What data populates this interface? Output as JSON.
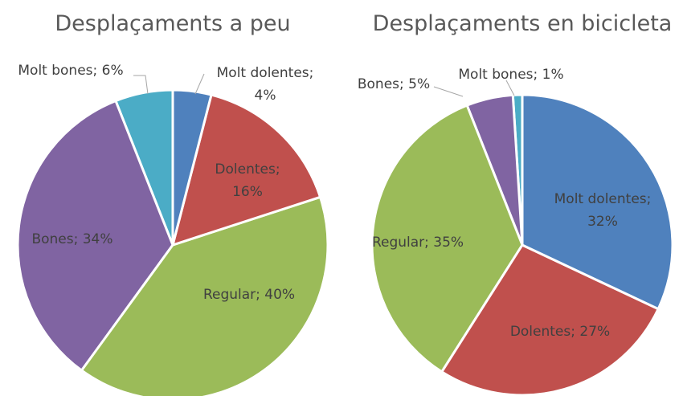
{
  "chart_data": [
    {
      "type": "pie",
      "title": "Desplaçaments a peu",
      "values": [
        4,
        16,
        40,
        34,
        6
      ],
      "value_labels": [
        "Molt dolentes; 4%",
        "Dolentes; 16%",
        "Regular; 40%",
        "Bones; 34%",
        "Molt bones; 6%"
      ],
      "colors": [
        "#4f81bd",
        "#c0504d",
        "#9bbb59",
        "#8064a2",
        "#4bacc6"
      ]
    },
    {
      "type": "pie",
      "title": "Desplaçaments en bicicleta",
      "values": [
        32,
        27,
        35,
        5,
        1
      ],
      "value_labels": [
        "Molt dolentes; 32%",
        "Dolentes; 27%",
        "Regular; 35%",
        "Bones; 5%",
        "Molt bones; 1%"
      ],
      "colors": [
        "#4f81bd",
        "#c0504d",
        "#9bbb59",
        "#8064a2",
        "#4bacc6"
      ]
    }
  ]
}
